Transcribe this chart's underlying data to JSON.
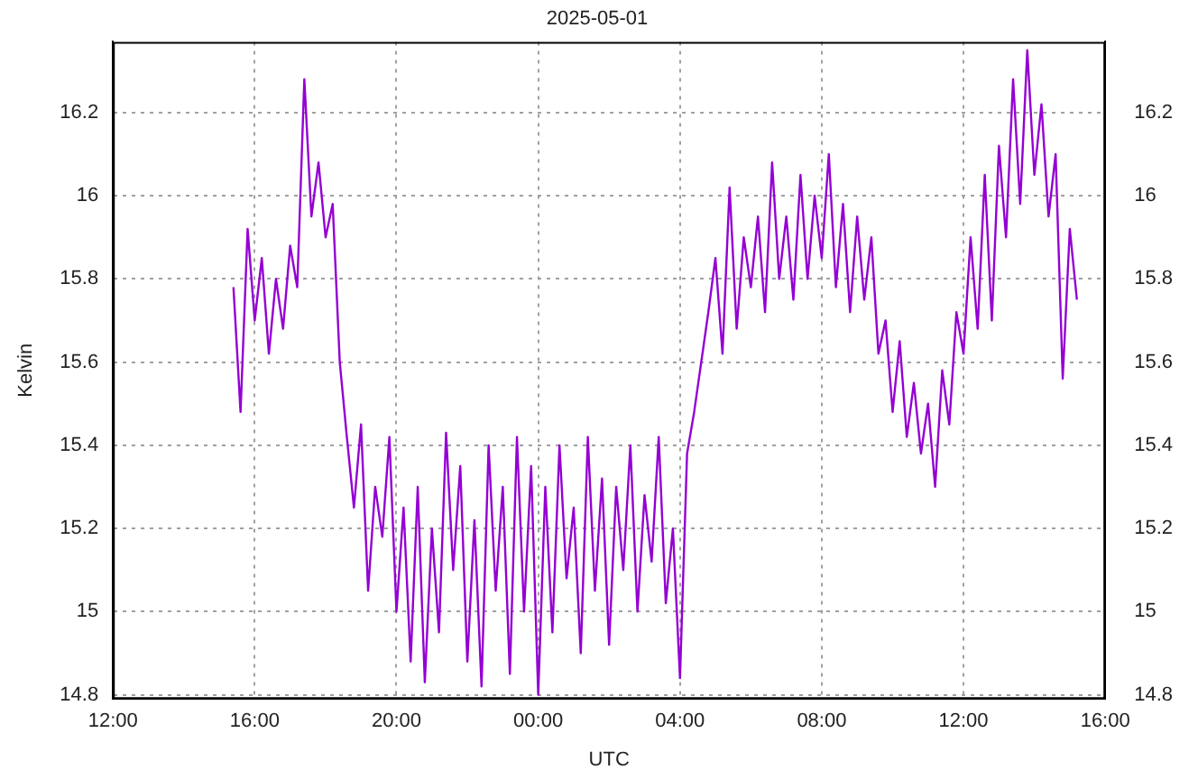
{
  "chart_data": {
    "type": "line",
    "title": "2025-05-01",
    "xlabel": "UTC",
    "ylabel": "Kelvin",
    "xlim": [
      "2025-04-30T12:00",
      "2025-05-01T16:00"
    ],
    "xticks": [
      {
        "value": "2025-04-30T12:00",
        "label": "12:00"
      },
      {
        "value": "2025-04-30T16:00",
        "label": "16:00"
      },
      {
        "value": "2025-04-30T20:00",
        "label": "20:00"
      },
      {
        "value": "2025-05-01T00:00",
        "label": "00:00"
      },
      {
        "value": "2025-05-01T04:00",
        "label": "04:00"
      },
      {
        "value": "2025-05-01T08:00",
        "label": "08:00"
      },
      {
        "value": "2025-05-01T12:00",
        "label": "12:00"
      },
      {
        "value": "2025-05-01T16:00",
        "label": "16:00"
      }
    ],
    "ylim": [
      14.79,
      16.37
    ],
    "yticks": [
      14.8,
      15,
      15.2,
      15.4,
      15.6,
      15.8,
      16,
      16.2
    ],
    "y2lim": [
      14.79,
      16.37
    ],
    "y2ticks": [
      14.8,
      15,
      15.2,
      15.4,
      15.6,
      15.8,
      16,
      16.2
    ],
    "grid": true,
    "legend": false,
    "marker": "none",
    "line_style": "solid",
    "x": [
      "2025-04-30T15:24",
      "2025-04-30T15:36",
      "2025-04-30T15:48",
      "2025-04-30T16:00",
      "2025-04-30T16:12",
      "2025-04-30T16:24",
      "2025-04-30T16:36",
      "2025-04-30T16:48",
      "2025-04-30T17:00",
      "2025-04-30T17:12",
      "2025-04-30T17:24",
      "2025-04-30T17:36",
      "2025-04-30T17:48",
      "2025-04-30T18:00",
      "2025-04-30T18:12",
      "2025-04-30T18:24",
      "2025-04-30T18:36",
      "2025-04-30T18:48",
      "2025-04-30T19:00",
      "2025-04-30T19:12",
      "2025-04-30T19:24",
      "2025-04-30T19:36",
      "2025-04-30T19:48",
      "2025-04-30T20:00",
      "2025-04-30T20:12",
      "2025-04-30T20:24",
      "2025-04-30T20:36",
      "2025-04-30T20:48",
      "2025-04-30T21:00",
      "2025-04-30T21:12",
      "2025-04-30T21:24",
      "2025-04-30T21:36",
      "2025-04-30T21:48",
      "2025-04-30T22:00",
      "2025-04-30T22:12",
      "2025-04-30T22:24",
      "2025-04-30T22:36",
      "2025-04-30T22:48",
      "2025-04-30T23:00",
      "2025-04-30T23:12",
      "2025-04-30T23:24",
      "2025-04-30T23:36",
      "2025-04-30T23:48",
      "2025-05-01T00:00",
      "2025-05-01T00:12",
      "2025-05-01T00:24",
      "2025-05-01T00:36",
      "2025-05-01T00:48",
      "2025-05-01T01:00",
      "2025-05-01T01:12",
      "2025-05-01T01:24",
      "2025-05-01T01:36",
      "2025-05-01T01:48",
      "2025-05-01T02:00",
      "2025-05-01T02:12",
      "2025-05-01T02:24",
      "2025-05-01T02:36",
      "2025-05-01T02:48",
      "2025-05-01T03:00",
      "2025-05-01T03:12",
      "2025-05-01T03:24",
      "2025-05-01T03:36",
      "2025-05-01T03:48",
      "2025-05-01T04:00",
      "2025-05-01T04:12",
      "2025-05-01T04:24",
      "2025-05-01T04:36",
      "2025-05-01T04:48",
      "2025-05-01T05:00",
      "2025-05-01T05:12",
      "2025-05-01T05:24",
      "2025-05-01T05:36",
      "2025-05-01T05:48",
      "2025-05-01T06:00",
      "2025-05-01T06:12",
      "2025-05-01T06:24",
      "2025-05-01T06:36",
      "2025-05-01T06:48",
      "2025-05-01T07:00",
      "2025-05-01T07:12",
      "2025-05-01T07:24",
      "2025-05-01T07:36",
      "2025-05-01T07:48",
      "2025-05-01T08:00",
      "2025-05-01T08:12",
      "2025-05-01T08:24",
      "2025-05-01T08:36",
      "2025-05-01T08:48",
      "2025-05-01T09:00",
      "2025-05-01T09:12",
      "2025-05-01T09:24",
      "2025-05-01T09:36",
      "2025-05-01T09:48",
      "2025-05-01T10:00",
      "2025-05-01T10:12",
      "2025-05-01T10:24",
      "2025-05-01T10:36",
      "2025-05-01T10:48",
      "2025-05-01T11:00",
      "2025-05-01T11:12",
      "2025-05-01T11:24",
      "2025-05-01T11:36",
      "2025-05-01T11:48",
      "2025-05-01T12:00",
      "2025-05-01T12:12",
      "2025-05-01T12:24",
      "2025-05-01T12:36",
      "2025-05-01T12:48",
      "2025-05-01T13:00",
      "2025-05-01T13:12",
      "2025-05-01T13:24",
      "2025-05-01T13:36",
      "2025-05-01T13:48",
      "2025-05-01T14:00",
      "2025-05-01T14:12",
      "2025-05-01T14:24",
      "2025-05-01T14:36",
      "2025-05-01T14:48",
      "2025-05-01T15:00",
      "2025-05-01T15:12"
    ],
    "series": [
      {
        "color": "#9400d3",
        "values": [
          15.78,
          15.48,
          15.92,
          15.7,
          15.85,
          15.62,
          15.8,
          15.68,
          15.88,
          15.78,
          16.28,
          15.95,
          16.08,
          15.9,
          15.98,
          15.6,
          15.42,
          15.25,
          15.45,
          15.05,
          15.3,
          15.18,
          15.42,
          15.0,
          15.25,
          14.88,
          15.3,
          14.83,
          15.2,
          14.95,
          15.43,
          15.1,
          15.35,
          14.88,
          15.22,
          14.82,
          15.4,
          15.05,
          15.3,
          14.85,
          15.42,
          15.0,
          15.35,
          14.8,
          15.3,
          14.95,
          15.4,
          15.08,
          15.25,
          14.9,
          15.42,
          15.05,
          15.32,
          14.92,
          15.3,
          15.1,
          15.4,
          15.0,
          15.28,
          15.12,
          15.42,
          15.02,
          15.2,
          14.84,
          15.38,
          15.48,
          15.6,
          15.72,
          15.85,
          15.62,
          16.02,
          15.68,
          15.9,
          15.78,
          15.95,
          15.72,
          16.08,
          15.8,
          15.95,
          15.75,
          16.05,
          15.8,
          16.0,
          15.85,
          16.1,
          15.78,
          15.98,
          15.72,
          15.95,
          15.75,
          15.9,
          15.62,
          15.7,
          15.48,
          15.65,
          15.42,
          15.55,
          15.38,
          15.5,
          15.3,
          15.58,
          15.45,
          15.72,
          15.62,
          15.9,
          15.68,
          16.05,
          15.7,
          16.12,
          15.9,
          16.28,
          15.98,
          16.35,
          16.05,
          16.22,
          15.95,
          16.1,
          15.56,
          15.92,
          15.75
        ]
      }
    ]
  }
}
